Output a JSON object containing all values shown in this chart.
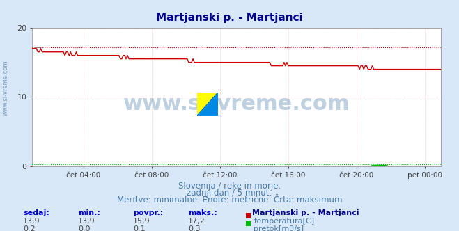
{
  "title": "Martjanski p. - Martjanci",
  "title_color": "#00008B",
  "title_fontsize": 11,
  "bg_color": "#d8e8f8",
  "plot_bg_color": "#ffffff",
  "watermark_text": "www.si-vreme.com",
  "watermark_color": "#4a7aaa",
  "watermark_alpha": 0.5,
  "xlabel_ticks": [
    "čet 04:00",
    "čet 08:00",
    "čet 12:00",
    "čet 16:00",
    "čet 20:00",
    "pet 00:00"
  ],
  "ylabel_temp": "",
  "ylabel_flow": "",
  "temp_color": "#cc0000",
  "flow_color": "#00bb00",
  "max_line_color": "#cc0000",
  "max_flow_color": "#00bb00",
  "temp_min": 13.9,
  "temp_max": 17.2,
  "temp_current": 13.9,
  "temp_avg": 15.9,
  "flow_min": 0.0,
  "flow_max": 0.3,
  "flow_current": 0.2,
  "flow_avg": 0.1,
  "ymin": 0,
  "ymax": 20,
  "yticks": [
    0,
    10,
    20
  ],
  "n_points": 288,
  "caption_line1": "Slovenija / reke in morje.",
  "caption_line2": "zadnji dan / 5 minut.",
  "caption_line3": "Meritve: minimalne  Enote: metrične  Črta: maksimum",
  "caption_color": "#4a7aaa",
  "caption_fontsize": 8.5,
  "legend_title": "Martjanski p. - Martjanci",
  "legend_title_color": "#00008B",
  "legend_temp_label": "temperatura[C]",
  "legend_flow_label": "pretok[m3/s]",
  "legend_color": "#4a7aaa",
  "table_headers": [
    "sedaj:",
    "min.:",
    "povpr.:",
    "maks.:"
  ],
  "table_header_color": "#0000cc",
  "table_value_color": "#4a4a4a",
  "grid_color": "#ffaaaa",
  "grid_linestyle": ":",
  "x_grid_color": "#ffaaaa",
  "sidebar_text": "www.si-vreme.com",
  "sidebar_color": "#4a7aaa"
}
